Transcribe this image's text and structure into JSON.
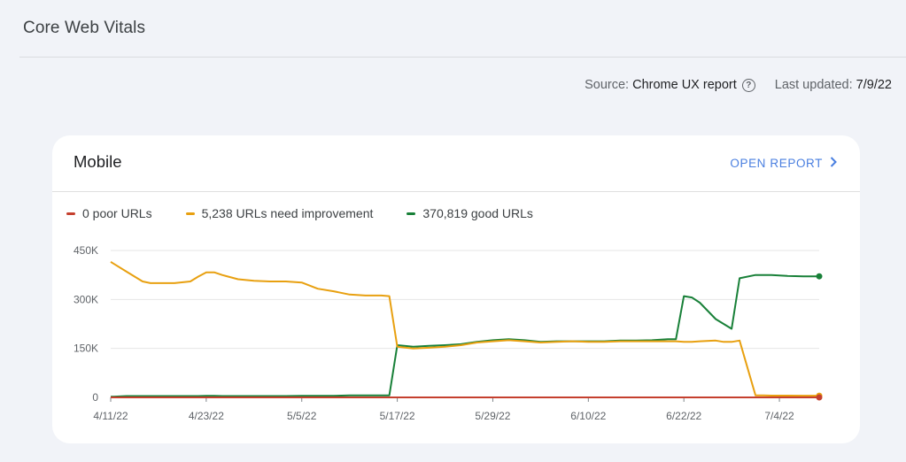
{
  "page": {
    "title": "Core Web Vitals",
    "source_label": "Source:",
    "source_value": "Chrome UX report",
    "last_updated_label": "Last updated:",
    "last_updated_value": "7/9/22"
  },
  "card": {
    "title": "Mobile",
    "open_report": "OPEN REPORT"
  },
  "icons": {
    "help": "help-circle-icon",
    "chevron": "chevron-right-icon"
  },
  "colors": {
    "poor": "#c5402e",
    "needs_improvement": "#e8a010",
    "good": "#188038"
  },
  "chart_data": {
    "type": "line",
    "x": [
      "4/11/22",
      "4/13/22",
      "4/15/22",
      "4/16/22",
      "4/17/22",
      "4/19/22",
      "4/21/22",
      "4/22/22",
      "4/23/22",
      "4/24/22",
      "4/25/22",
      "4/27/22",
      "4/29/22",
      "5/1/22",
      "5/3/22",
      "5/5/22",
      "5/7/22",
      "5/9/22",
      "5/11/22",
      "5/13/22",
      "5/15/22",
      "5/16/22",
      "5/17/22",
      "5/19/22",
      "5/21/22",
      "5/23/22",
      "5/25/22",
      "5/27/22",
      "5/29/22",
      "5/31/22",
      "6/2/22",
      "6/4/22",
      "6/6/22",
      "6/8/22",
      "6/10/22",
      "6/12/22",
      "6/14/22",
      "6/16/22",
      "6/18/22",
      "6/20/22",
      "6/21/22",
      "6/22/22",
      "6/23/22",
      "6/24/22",
      "6/26/22",
      "6/27/22",
      "6/28/22",
      "6/29/22",
      "7/1/22",
      "7/2/22",
      "7/3/22",
      "7/5/22",
      "7/7/22",
      "7/9/22"
    ],
    "series": [
      {
        "name": "0 poor URLs",
        "color": "#c5402e",
        "values": [
          0,
          0,
          0,
          0,
          0,
          0,
          0,
          0,
          0,
          0,
          0,
          0,
          0,
          0,
          0,
          0,
          0,
          0,
          0,
          0,
          0,
          0,
          0,
          0,
          0,
          0,
          0,
          0,
          0,
          0,
          0,
          0,
          0,
          0,
          0,
          0,
          0,
          0,
          0,
          0,
          0,
          0,
          0,
          0,
          0,
          0,
          0,
          0,
          0,
          0,
          0,
          0,
          0,
          0
        ]
      },
      {
        "name": "5,238 URLs need improvement",
        "color": "#e8a010",
        "values": [
          415000,
          385000,
          355000,
          350000,
          350000,
          350000,
          355000,
          370000,
          383000,
          383000,
          375000,
          362000,
          357000,
          355000,
          355000,
          352000,
          333000,
          325000,
          315000,
          312000,
          312000,
          310000,
          155000,
          150000,
          152000,
          155000,
          160000,
          168000,
          172000,
          175000,
          172000,
          168000,
          170000,
          172000,
          170000,
          170000,
          172000,
          172000,
          172000,
          172000,
          172000,
          170000,
          170000,
          172000,
          174000,
          170000,
          170000,
          174000,
          6000,
          6000,
          5500,
          5300,
          5238,
          5238
        ]
      },
      {
        "name": "370,819 good URLs",
        "color": "#188038",
        "values": [
          2000,
          4000,
          4000,
          4000,
          4000,
          4000,
          4000,
          4000,
          5000,
          5000,
          4000,
          4000,
          4000,
          4000,
          4000,
          5000,
          5000,
          5000,
          6000,
          6000,
          6000,
          6000,
          160000,
          155000,
          158000,
          160000,
          163000,
          170000,
          175000,
          178000,
          175000,
          170000,
          172000,
          172000,
          172000,
          172000,
          174000,
          174000,
          175000,
          178000,
          178000,
          310000,
          306000,
          290000,
          240000,
          225000,
          210000,
          365000,
          375000,
          375000,
          375000,
          372000,
          370819,
          370819
        ]
      }
    ],
    "x_ticks": [
      "4/11/22",
      "4/23/22",
      "5/5/22",
      "5/17/22",
      "5/29/22",
      "6/10/22",
      "6/22/22",
      "7/4/22"
    ],
    "y_ticks": [
      "450K",
      "300K",
      "150K",
      "0"
    ],
    "ylim": [
      0,
      450000
    ],
    "grid": true,
    "legend_placement": "top-left"
  }
}
